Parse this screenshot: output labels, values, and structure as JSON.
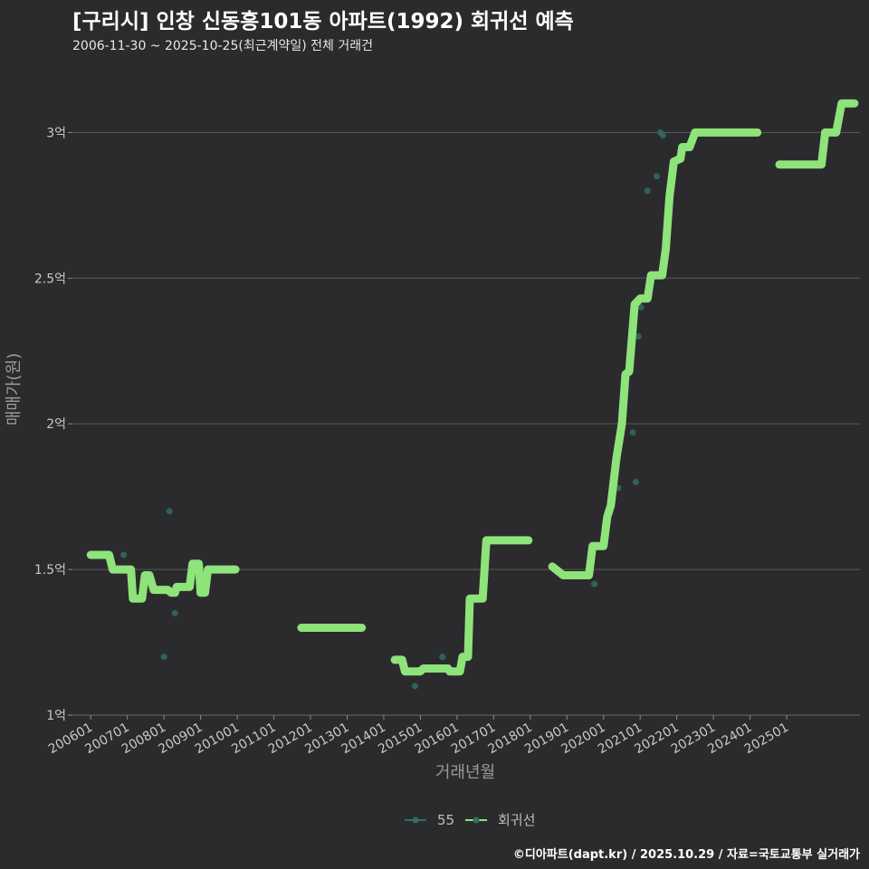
{
  "header": {
    "title": "[구리시] 인창 신동흥101동 아파트(1992) 회귀선 예측",
    "subtitle": "2006-11-30 ~ 2025-10-25(최근계약일) 전체 거래건",
    "credit": "©디아파트(dapt.kr) / 2025.10.29 / 자료=국토교통부 실거래가"
  },
  "chart_data": {
    "type": "line",
    "title": "[구리시] 인창 신동흥101동 아파트(1992) 회귀선 예측",
    "xlabel": "거래년월",
    "ylabel": "매매가(원)",
    "xlim": [
      2005.5,
      2027.0
    ],
    "ylim": [
      1.0,
      3.2
    ],
    "y_unit": "억",
    "x_tick_labels": [
      "200601",
      "200701",
      "200801",
      "200901",
      "201001",
      "201101",
      "201201",
      "201301",
      "201401",
      "201501",
      "201601",
      "201701",
      "201801",
      "201901",
      "202001",
      "202101",
      "202201",
      "202301",
      "202401",
      "202501"
    ],
    "x_tick_values": [
      2006,
      2007,
      2008,
      2009,
      2010,
      2011,
      2012,
      2013,
      2014,
      2015,
      2016,
      2017,
      2018,
      2019,
      2020,
      2021,
      2022,
      2023,
      2024,
      2025
    ],
    "y_tick_labels": [
      "1억",
      "1.5억",
      "2억",
      "2.5억",
      "3억"
    ],
    "y_tick_values": [
      1.0,
      1.5,
      2.0,
      2.5,
      3.0
    ],
    "colors": {
      "points": "#2f6f5f",
      "regression": "#8ee37a",
      "grid": "#5a5a5c",
      "background": "#2b2b2d"
    },
    "legend": {
      "position": "bottom",
      "entries": [
        "55",
        "회귀선"
      ]
    },
    "series": [
      {
        "name": "55",
        "kind": "scatter",
        "points": [
          [
            2006.9,
            1.55
          ],
          [
            2008.0,
            1.2
          ],
          [
            2008.15,
            1.7
          ],
          [
            2008.3,
            1.35
          ],
          [
            2014.5,
            1.19
          ],
          [
            2014.85,
            1.1
          ],
          [
            2015.6,
            1.2
          ],
          [
            2019.75,
            1.45
          ],
          [
            2020.4,
            1.78
          ],
          [
            2020.8,
            1.97
          ],
          [
            2020.88,
            1.8
          ],
          [
            2020.95,
            2.3
          ],
          [
            2021.02,
            2.4
          ],
          [
            2021.2,
            2.8
          ],
          [
            2021.45,
            2.85
          ],
          [
            2021.55,
            3.0
          ],
          [
            2021.62,
            2.99
          ]
        ]
      },
      {
        "name": "회귀선",
        "kind": "line",
        "segments": [
          [
            [
              2006.0,
              1.55
            ],
            [
              2006.5,
              1.55
            ],
            [
              2006.6,
              1.5
            ],
            [
              2007.1,
              1.5
            ],
            [
              2007.15,
              1.4
            ],
            [
              2007.4,
              1.4
            ],
            [
              2007.48,
              1.48
            ],
            [
              2007.6,
              1.48
            ],
            [
              2007.72,
              1.43
            ],
            [
              2008.1,
              1.43
            ],
            [
              2008.2,
              1.42
            ],
            [
              2008.3,
              1.42
            ],
            [
              2008.35,
              1.44
            ],
            [
              2008.7,
              1.44
            ],
            [
              2008.78,
              1.52
            ],
            [
              2008.95,
              1.52
            ],
            [
              2009.0,
              1.42
            ],
            [
              2009.12,
              1.42
            ],
            [
              2009.2,
              1.5
            ],
            [
              2009.95,
              1.5
            ]
          ],
          [
            [
              2011.75,
              1.3
            ],
            [
              2013.4,
              1.3
            ]
          ],
          [
            [
              2014.3,
              1.19
            ],
            [
              2014.5,
              1.19
            ],
            [
              2014.58,
              1.15
            ],
            [
              2015.0,
              1.15
            ],
            [
              2015.08,
              1.16
            ],
            [
              2015.75,
              1.16
            ],
            [
              2015.8,
              1.15
            ],
            [
              2016.08,
              1.15
            ],
            [
              2016.15,
              1.2
            ],
            [
              2016.3,
              1.2
            ],
            [
              2016.35,
              1.4
            ],
            [
              2016.7,
              1.4
            ],
            [
              2016.8,
              1.6
            ],
            [
              2017.95,
              1.6
            ]
          ],
          [
            [
              2018.6,
              1.51
            ],
            [
              2018.8,
              1.49
            ],
            [
              2018.9,
              1.48
            ],
            [
              2019.6,
              1.48
            ],
            [
              2019.7,
              1.58
            ],
            [
              2020.0,
              1.58
            ],
            [
              2020.1,
              1.68
            ],
            [
              2020.2,
              1.72
            ],
            [
              2020.35,
              1.88
            ],
            [
              2020.5,
              2.0
            ],
            [
              2020.6,
              2.17
            ],
            [
              2020.7,
              2.18
            ],
            [
              2020.85,
              2.41
            ],
            [
              2021.0,
              2.43
            ],
            [
              2021.2,
              2.43
            ],
            [
              2021.3,
              2.51
            ],
            [
              2021.6,
              2.51
            ],
            [
              2021.7,
              2.6
            ],
            [
              2021.8,
              2.78
            ],
            [
              2021.92,
              2.9
            ],
            [
              2022.1,
              2.91
            ],
            [
              2022.15,
              2.95
            ],
            [
              2022.35,
              2.95
            ],
            [
              2022.5,
              3.0
            ],
            [
              2024.2,
              3.0
            ]
          ],
          [
            [
              2024.8,
              2.89
            ],
            [
              2025.95,
              2.89
            ],
            [
              2026.05,
              3.0
            ],
            [
              2026.35,
              3.0
            ],
            [
              2026.5,
              3.1
            ],
            [
              2026.85,
              3.1
            ]
          ]
        ]
      }
    ]
  }
}
